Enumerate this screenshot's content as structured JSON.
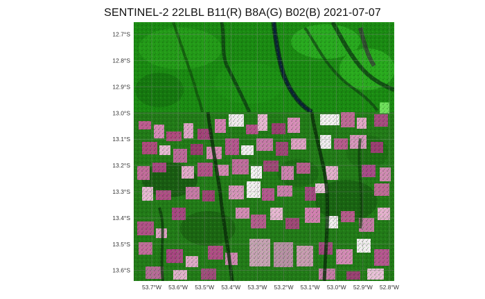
{
  "title": "SENTINEL-2 22LBL B11(R) B8A(G) B02(B) 2021-07-07",
  "map": {
    "lat_ticks": [
      "12.7°S",
      "12.8°S",
      "12.9°S",
      "13.0°S",
      "13.1°S",
      "13.2°S",
      "13.3°S",
      "13.4°S",
      "13.5°S",
      "13.6°S"
    ],
    "lon_ticks": [
      "53.7°W",
      "53.6°W",
      "53.5°W",
      "53.4°W",
      "53.3°W",
      "53.2°W",
      "53.1°W",
      "53.0°W",
      "52.9°W",
      "52.8°W"
    ],
    "colors": {
      "forest_dark": "#0d3d0a",
      "forest": "#1f8a16",
      "forest_bright": "#3fd82a",
      "water": "#0a1f3a",
      "cleared_magenta": "#b0487e",
      "cleared_pink": "#d889b8",
      "bare_white": "#f2eef2",
      "grid": "#8c8c8c"
    }
  }
}
